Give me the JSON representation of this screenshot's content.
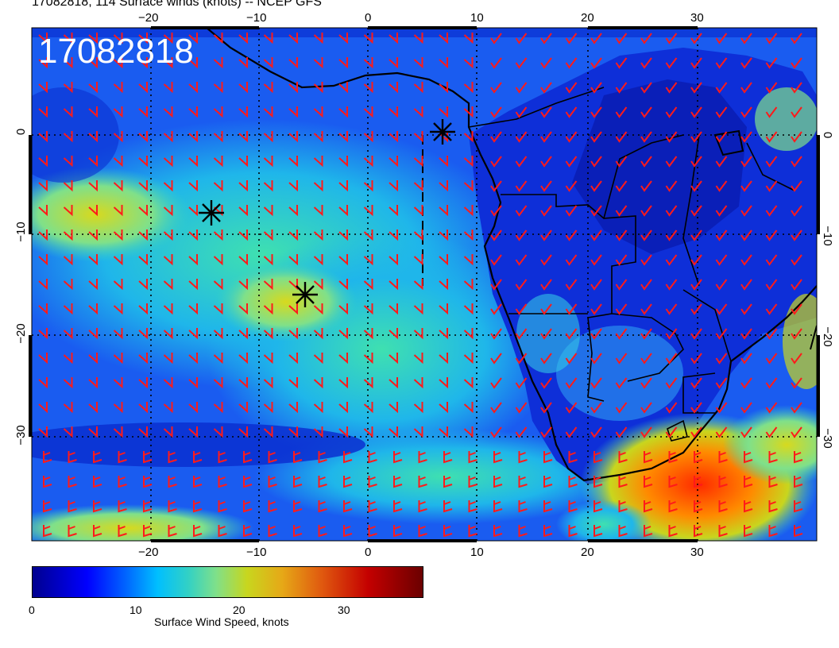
{
  "title": "17082818, 114 Surface winds (knots) -- NCEP GFS",
  "timestamp_overlay": "17082818",
  "map": {
    "lon_ticks_top": [
      "−20",
      "−10",
      "0",
      "10",
      "20",
      "30"
    ],
    "lon_ticks_bottom": [
      "−20",
      "−10",
      "0",
      "10",
      "20",
      "30"
    ],
    "lat_ticks_left": [
      "0",
      "−10",
      "−20",
      "−30"
    ],
    "lat_ticks_right": [
      "0",
      "−10",
      "−20",
      "−30"
    ],
    "wind_barb_color": "#ff1a1a",
    "markers": "asterisk"
  },
  "colorbar": {
    "ticks": [
      "0",
      "10",
      "20",
      "30"
    ],
    "label": "Surface Wind Speed, knots"
  },
  "colors": {
    "low": "#00008f",
    "mid": "#00bfff",
    "high": "#c40000"
  }
}
